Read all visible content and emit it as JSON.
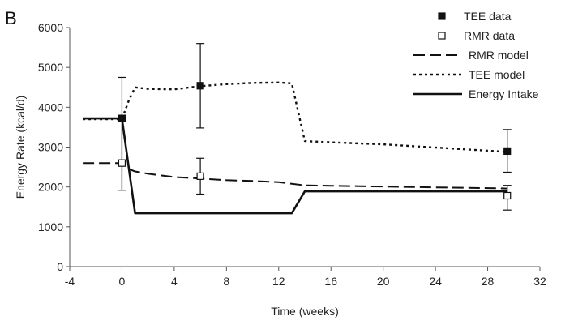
{
  "panel_label": "B",
  "chart_data": {
    "type": "line",
    "title": "",
    "xlabel": "Time (weeks)",
    "ylabel": "Energy Rate (kcal/d)",
    "xlim": [
      -4,
      32
    ],
    "ylim": [
      0,
      6000
    ],
    "xticks": [
      -4,
      0,
      4,
      8,
      12,
      16,
      20,
      24,
      28,
      32
    ],
    "yticks": [
      0,
      1000,
      2000,
      3000,
      4000,
      5000,
      6000
    ],
    "grid": false,
    "legend_position": "top-right",
    "series": [
      {
        "name": "TEE data",
        "kind": "points",
        "marker": "filled-square",
        "x": [
          0,
          6,
          29.5
        ],
        "y": [
          3720,
          4540,
          2900
        ],
        "err_low": [
          1920,
          3480,
          2370
        ],
        "err_high": [
          4750,
          5600,
          3440
        ]
      },
      {
        "name": "RMR data",
        "kind": "points",
        "marker": "open-square",
        "x": [
          0,
          6,
          29.5
        ],
        "y": [
          2600,
          2270,
          1780
        ],
        "err_low": [
          1920,
          1820,
          1420
        ],
        "err_high": [
          3720,
          2720,
          2040
        ]
      },
      {
        "name": "RMR model",
        "kind": "line",
        "style": "dashed",
        "x": [
          -3,
          0,
          0.5,
          1,
          2,
          4,
          6,
          8,
          10,
          12,
          13,
          14,
          16,
          20,
          24,
          28,
          29.5
        ],
        "y": [
          2600,
          2600,
          2450,
          2390,
          2330,
          2250,
          2210,
          2170,
          2150,
          2120,
          2080,
          2040,
          2030,
          2010,
          1990,
          1970,
          1960
        ]
      },
      {
        "name": "TEE model",
        "kind": "line",
        "style": "dotted",
        "x": [
          -3,
          0,
          0.5,
          1,
          2,
          4,
          6,
          8,
          10,
          12,
          13,
          14,
          16,
          20,
          24,
          28,
          29.5
        ],
        "y": [
          3700,
          3700,
          4150,
          4500,
          4460,
          4450,
          4530,
          4580,
          4610,
          4620,
          4600,
          3150,
          3120,
          3070,
          2990,
          2910,
          2880
        ]
      },
      {
        "name": "Energy Intake",
        "kind": "line",
        "style": "solid",
        "x": [
          -3,
          0,
          1,
          13,
          14,
          29.5
        ],
        "y": [
          3720,
          3720,
          1340,
          1340,
          1890,
          1890
        ]
      }
    ]
  }
}
